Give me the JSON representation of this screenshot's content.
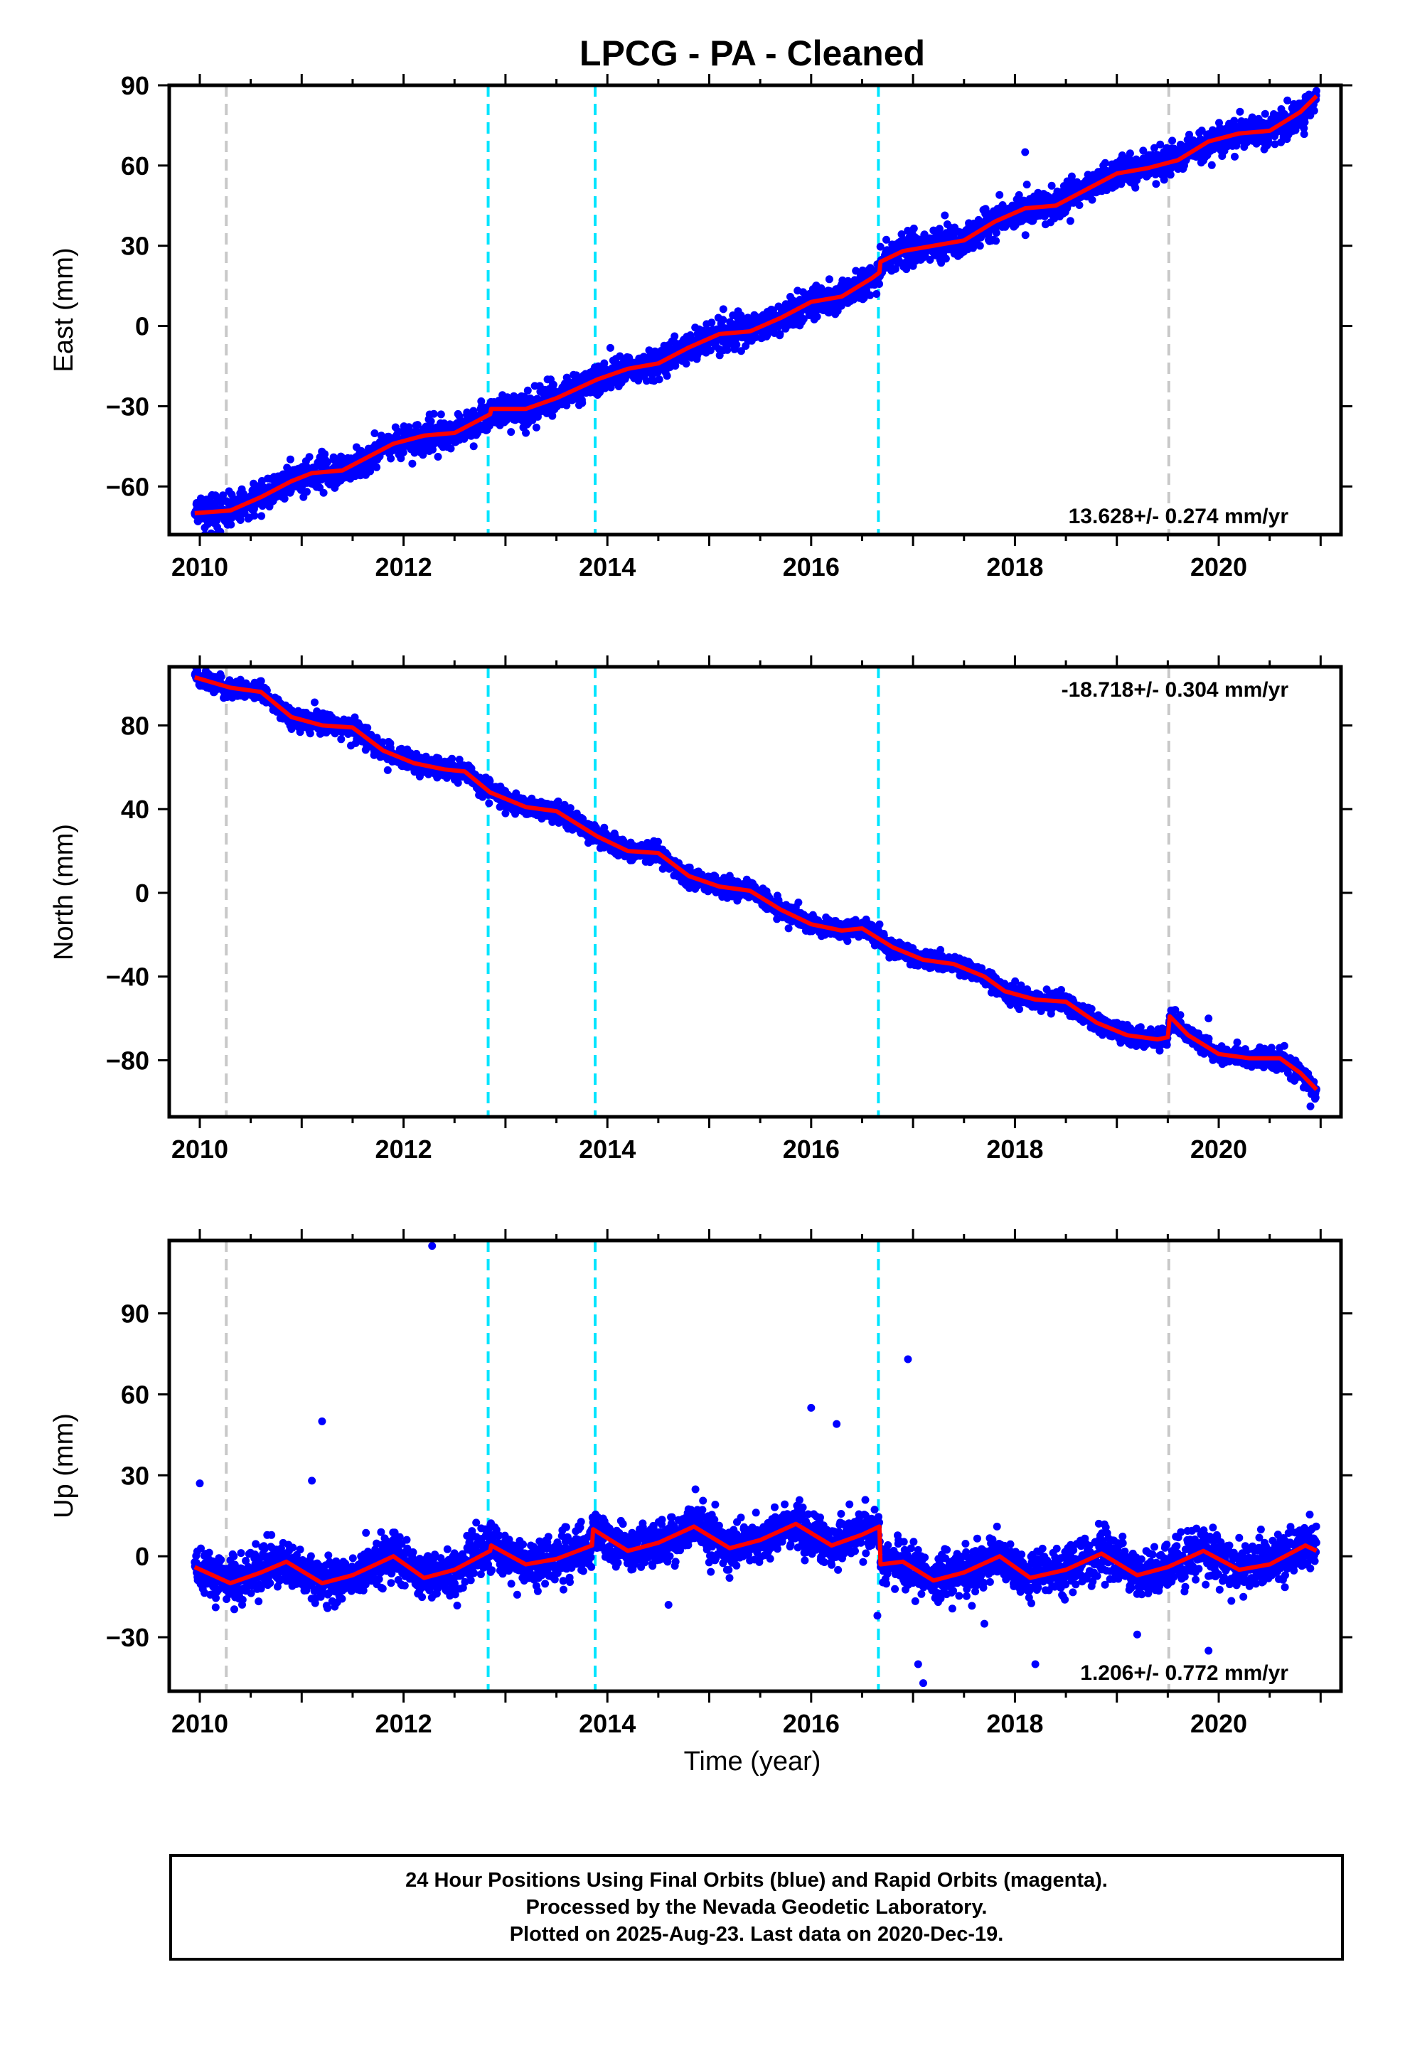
{
  "title": "LPCG  - PA - Cleaned",
  "xlabel": "Time (year)",
  "colors": {
    "data": "#0000ff",
    "model": "#ff0000",
    "equipment_change": "#00e5ff",
    "earthquake": "#c8c8c8",
    "frame": "#000000"
  },
  "chart_data": [
    {
      "type": "scatter",
      "name": "east",
      "ylabel": "East (mm)",
      "rate_text": "13.628+/- 0.274 mm/yr",
      "xlim": [
        2009.7,
        2021.2
      ],
      "ylim": [
        -78,
        90
      ],
      "xticks": [
        "2010",
        "2012",
        "2014",
        "2016",
        "2018",
        "2020"
      ],
      "yticks": [
        "−60",
        "−30",
        "0",
        "30",
        "60",
        "90"
      ],
      "trend_knots": [
        [
          2009.95,
          -70
        ],
        [
          2010.3,
          -69
        ],
        [
          2010.6,
          -64
        ],
        [
          2010.9,
          -58
        ],
        [
          2011.1,
          -55
        ],
        [
          2011.4,
          -54
        ],
        [
          2011.6,
          -50
        ],
        [
          2011.9,
          -44
        ],
        [
          2012.2,
          -41
        ],
        [
          2012.5,
          -40
        ],
        [
          2012.85,
          -33
        ],
        [
          2012.86,
          -31
        ],
        [
          2013.2,
          -31
        ],
        [
          2013.5,
          -27
        ],
        [
          2013.9,
          -20
        ],
        [
          2014.2,
          -16
        ],
        [
          2014.5,
          -14
        ],
        [
          2014.8,
          -8
        ],
        [
          2015.1,
          -3
        ],
        [
          2015.4,
          -2
        ],
        [
          2015.7,
          3
        ],
        [
          2016.0,
          9
        ],
        [
          2016.3,
          11
        ],
        [
          2016.6,
          18
        ],
        [
          2016.67,
          20
        ],
        [
          2016.68,
          24
        ],
        [
          2016.9,
          28
        ],
        [
          2017.2,
          30
        ],
        [
          2017.5,
          32
        ],
        [
          2017.8,
          39
        ],
        [
          2018.1,
          44
        ],
        [
          2018.4,
          45
        ],
        [
          2018.7,
          51
        ],
        [
          2019.0,
          57
        ],
        [
          2019.3,
          59
        ],
        [
          2019.6,
          62
        ],
        [
          2019.9,
          69
        ],
        [
          2020.2,
          72
        ],
        [
          2020.5,
          73
        ],
        [
          2020.8,
          80
        ],
        [
          2020.96,
          86
        ]
      ],
      "noise_sd": 2.8,
      "outliers": [
        [
          2018.1,
          65
        ],
        [
          2010.05,
          -78
        ],
        [
          2011.05,
          -62
        ],
        [
          2018.3,
          38
        ],
        [
          2013.2,
          -40
        ]
      ]
    },
    {
      "type": "scatter",
      "name": "north",
      "ylabel": "North (mm)",
      "rate_text": "-18.718+/- 0.304 mm/yr",
      "xlim": [
        2009.7,
        2021.2
      ],
      "ylim": [
        -107,
        108
      ],
      "xticks": [
        "2010",
        "2012",
        "2014",
        "2016",
        "2018",
        "2020"
      ],
      "yticks": [
        "−80",
        "−40",
        "0",
        "40",
        "80"
      ],
      "trend_knots": [
        [
          2009.95,
          103
        ],
        [
          2010.3,
          98
        ],
        [
          2010.6,
          96
        ],
        [
          2010.9,
          84
        ],
        [
          2011.2,
          80
        ],
        [
          2011.5,
          79
        ],
        [
          2011.8,
          68
        ],
        [
          2012.1,
          62
        ],
        [
          2012.4,
          59
        ],
        [
          2012.6,
          58
        ],
        [
          2012.85,
          48
        ],
        [
          2013.2,
          41
        ],
        [
          2013.5,
          39
        ],
        [
          2013.9,
          27
        ],
        [
          2014.2,
          20
        ],
        [
          2014.5,
          19
        ],
        [
          2014.8,
          8
        ],
        [
          2015.1,
          3
        ],
        [
          2015.4,
          1
        ],
        [
          2015.7,
          -8
        ],
        [
          2016.0,
          -15
        ],
        [
          2016.3,
          -18
        ],
        [
          2016.5,
          -17
        ],
        [
          2016.8,
          -26
        ],
        [
          2017.1,
          -32
        ],
        [
          2017.4,
          -34
        ],
        [
          2017.7,
          -40
        ],
        [
          2017.9,
          -47
        ],
        [
          2018.2,
          -51
        ],
        [
          2018.5,
          -52
        ],
        [
          2018.8,
          -62
        ],
        [
          2019.1,
          -68
        ],
        [
          2019.4,
          -70
        ],
        [
          2019.5,
          -69
        ],
        [
          2019.52,
          -59
        ],
        [
          2019.7,
          -68
        ],
        [
          2020.0,
          -77
        ],
        [
          2020.3,
          -79
        ],
        [
          2020.6,
          -79
        ],
        [
          2020.8,
          -86
        ],
        [
          2020.96,
          -94
        ]
      ],
      "noise_sd": 2.2,
      "outliers": [
        [
          2020.9,
          -102
        ],
        [
          2019.9,
          -60
        ],
        [
          2013.0,
          38
        ]
      ]
    },
    {
      "type": "scatter",
      "name": "up",
      "ylabel": "Up (mm)",
      "rate_text": "1.206+/- 0.772 mm/yr",
      "xlim": [
        2009.7,
        2021.2
      ],
      "ylim": [
        -50,
        117
      ],
      "xticks": [
        "2010",
        "2012",
        "2014",
        "2016",
        "2018",
        "2020"
      ],
      "yticks": [
        "−30",
        "0",
        "30",
        "60",
        "90"
      ],
      "trend_knots": [
        [
          2009.95,
          -4
        ],
        [
          2010.3,
          -10
        ],
        [
          2010.6,
          -6
        ],
        [
          2010.85,
          -2
        ],
        [
          2011.2,
          -10
        ],
        [
          2011.5,
          -7
        ],
        [
          2011.9,
          0
        ],
        [
          2012.2,
          -8
        ],
        [
          2012.5,
          -5
        ],
        [
          2012.85,
          2
        ],
        [
          2012.86,
          4
        ],
        [
          2013.2,
          -3
        ],
        [
          2013.5,
          -1
        ],
        [
          2013.85,
          4
        ],
        [
          2013.86,
          10
        ],
        [
          2014.2,
          2
        ],
        [
          2014.5,
          5
        ],
        [
          2014.85,
          11
        ],
        [
          2015.2,
          3
        ],
        [
          2015.5,
          6
        ],
        [
          2015.85,
          12
        ],
        [
          2016.2,
          4
        ],
        [
          2016.5,
          8
        ],
        [
          2016.67,
          11
        ],
        [
          2016.68,
          -3
        ],
        [
          2016.9,
          -2
        ],
        [
          2017.2,
          -9
        ],
        [
          2017.5,
          -6
        ],
        [
          2017.85,
          0
        ],
        [
          2018.15,
          -8
        ],
        [
          2018.5,
          -5
        ],
        [
          2018.85,
          1
        ],
        [
          2019.2,
          -7
        ],
        [
          2019.5,
          -4
        ],
        [
          2019.85,
          2
        ],
        [
          2020.2,
          -5
        ],
        [
          2020.5,
          -3
        ],
        [
          2020.85,
          4
        ],
        [
          2020.96,
          2
        ]
      ],
      "noise_sd": 4.2,
      "outliers": [
        [
          2012.28,
          115
        ],
        [
          2016.95,
          73
        ],
        [
          2011.2,
          50
        ],
        [
          2016.0,
          55
        ],
        [
          2016.25,
          49
        ],
        [
          2011.1,
          28
        ],
        [
          2010.0,
          27
        ],
        [
          2017.1,
          -47
        ],
        [
          2017.05,
          -40
        ],
        [
          2018.2,
          -40
        ],
        [
          2019.2,
          -29
        ],
        [
          2019.9,
          -35
        ],
        [
          2016.65,
          -22
        ],
        [
          2014.6,
          -18
        ],
        [
          2017.7,
          -25
        ]
      ]
    }
  ],
  "legend_box": {
    "line1": "24 Hour Positions Using Final Orbits (blue) and Rapid Orbits (magenta).",
    "line2": "Processed by the Nevada Geodetic Laboratory.",
    "line3": "Plotted on 2025-Aug-23. Last data on 2020-Dec-19."
  },
  "event_lines": {
    "equipment_change_years": [
      2012.83,
      2013.88,
      2016.66
    ],
    "earthquake_years": [
      2010.26,
      2019.51
    ]
  }
}
